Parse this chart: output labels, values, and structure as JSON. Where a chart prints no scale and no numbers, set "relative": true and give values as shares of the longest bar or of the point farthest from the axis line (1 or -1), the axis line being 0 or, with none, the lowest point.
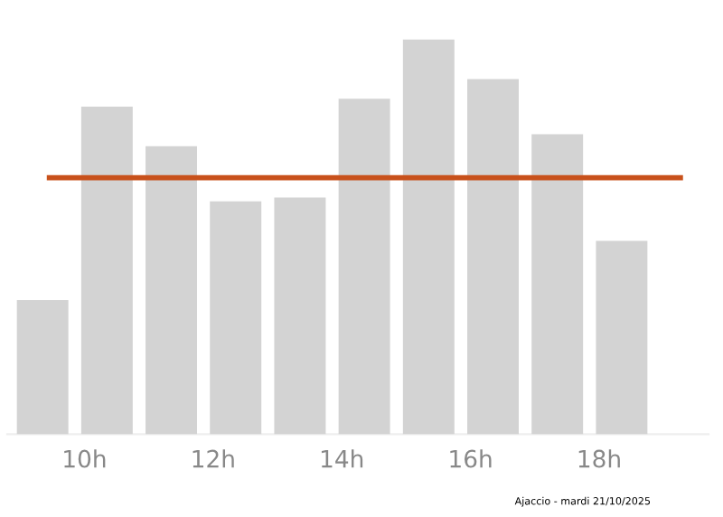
{
  "chart_data": {
    "type": "bar",
    "relative": true,
    "x": [
      9.35,
      10.35,
      11.35,
      12.35,
      13.35,
      14.35,
      15.35,
      16.35,
      17.35,
      18.35
    ],
    "values": [
      0.34,
      0.83,
      0.73,
      0.59,
      0.6,
      0.85,
      1,
      0.9,
      0.76,
      0.49
    ],
    "color": "#d3d3d3",
    "xlim": [
      8.8,
      19.7
    ],
    "xticks": [
      {
        "value": 10,
        "label": "10h"
      },
      {
        "value": 12,
        "label": "12h"
      },
      {
        "value": 14,
        "label": "14h"
      },
      {
        "value": 16,
        "label": "16h"
      },
      {
        "value": 18,
        "label": "18h"
      }
    ],
    "ref_lines": [
      {
        "axis": "y",
        "value": 0.65,
        "color": "#c8511b"
      }
    ],
    "annotations": [
      "Ajaccio - mardi 21/10/2025"
    ],
    "grid": false,
    "legend": false
  }
}
